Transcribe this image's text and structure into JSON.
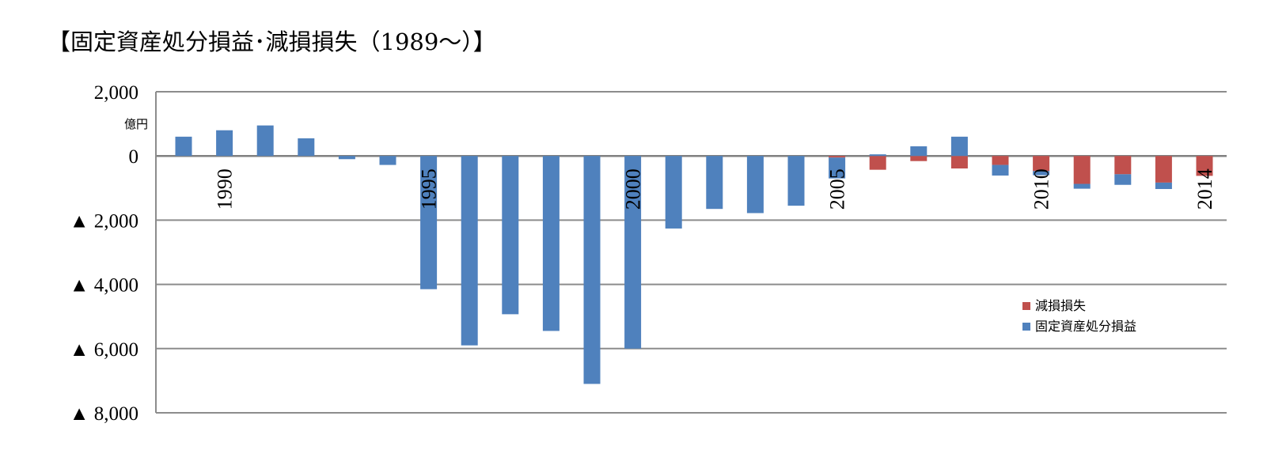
{
  "chart_data": {
    "type": "bar",
    "stacked": true,
    "title": "【固定資産処分損益･減損損失（1989～）】",
    "unit_label": "億円",
    "x": [
      1989,
      1990,
      1991,
      1992,
      1993,
      1994,
      1995,
      1996,
      1997,
      1998,
      1999,
      2000,
      2001,
      2002,
      2003,
      2004,
      2005,
      2006,
      2007,
      2008,
      2009,
      2010,
      2011,
      2012,
      2013,
      2014
    ],
    "x_tick_labels": [
      {
        "year": 1990,
        "label": "1990"
      },
      {
        "year": 1995,
        "label": "1995"
      },
      {
        "year": 2000,
        "label": "2000"
      },
      {
        "year": 2005,
        "label": "2005"
      },
      {
        "year": 2010,
        "label": "2010"
      },
      {
        "year": 2014,
        "label": "2014"
      }
    ],
    "y_ticks": [
      {
        "value": 2000,
        "label": "2,000"
      },
      {
        "value": 0,
        "label": "0"
      },
      {
        "value": -2000,
        "label": "▲ 2,000"
      },
      {
        "value": -4000,
        "label": "▲ 4,000"
      },
      {
        "value": -6000,
        "label": "▲ 6,000"
      },
      {
        "value": -8000,
        "label": "▲ 8,000"
      }
    ],
    "ylim": [
      -8000,
      2000
    ],
    "grid": true,
    "legend_position": "right",
    "series": [
      {
        "name": "減損損失",
        "color": "#c0504d",
        "values": [
          0,
          0,
          0,
          0,
          0,
          0,
          0,
          0,
          0,
          0,
          0,
          0,
          0,
          0,
          0,
          0,
          -50,
          -430,
          -160,
          -390,
          -280,
          -470,
          -870,
          -570,
          -830,
          -620
        ]
      },
      {
        "name": "固定資産処分損益",
        "color": "#4f81bd",
        "values": [
          600,
          800,
          950,
          550,
          -100,
          -280,
          -4150,
          -5900,
          -4930,
          -5450,
          -7100,
          -6000,
          -2260,
          -1650,
          -1780,
          -1550,
          -650,
          50,
          300,
          600,
          -330,
          -130,
          -150,
          -330,
          -200,
          0
        ]
      }
    ]
  }
}
